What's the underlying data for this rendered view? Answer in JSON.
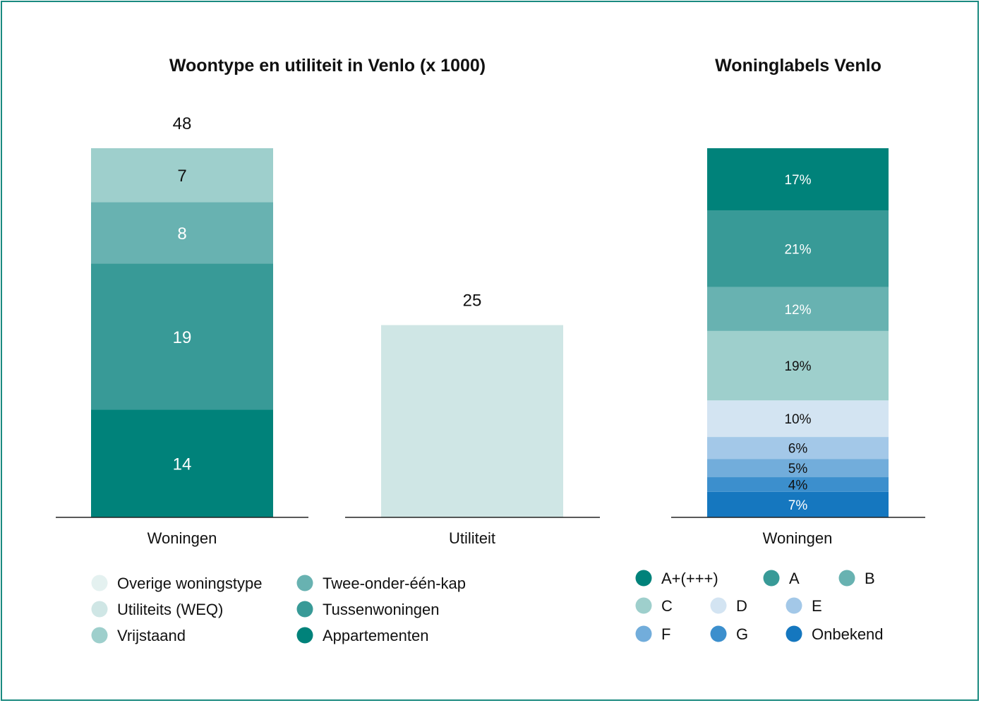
{
  "chart_data": [
    {
      "type": "bar",
      "stacked": true,
      "title": "Woontype en utiliteit in Venlo (x 1000)",
      "categories": [
        "Woningen",
        "Utiliteit"
      ],
      "totals": [
        48,
        25
      ],
      "series": [
        {
          "name": "Appartementen",
          "color": "#00827a",
          "values": [
            14,
            0
          ]
        },
        {
          "name": "Tussenwoningen",
          "color": "#389a97",
          "values": [
            19,
            0
          ]
        },
        {
          "name": "Twee-onder-één-kap",
          "color": "#68b2b1",
          "values": [
            8,
            0
          ]
        },
        {
          "name": "Vrijstaand",
          "color": "#9ecfcc",
          "values": [
            7,
            0
          ]
        },
        {
          "name": "Utiliteits (WEQ)",
          "color": "#cfe6e5",
          "values": [
            0,
            25
          ]
        },
        {
          "name": "Overige woningstype",
          "color": "#e4f1f0",
          "values": [
            0,
            0
          ]
        }
      ],
      "value_labels": {
        "woningen": [
          "14",
          "19",
          "8",
          "7"
        ],
        "totals": [
          "48",
          "25"
        ]
      },
      "legend": {
        "placement": "bottom",
        "items": [
          {
            "label": "Overige woningstype",
            "color": "#e4f1f0"
          },
          {
            "label": "Utiliteits (WEQ)",
            "color": "#cfe6e5"
          },
          {
            "label": "Vrijstaand",
            "color": "#9ecfcc"
          },
          {
            "label": "Twee-onder-één-kap",
            "color": "#68b2b1"
          },
          {
            "label": "Tussenwoningen",
            "color": "#389a97"
          },
          {
            "label": "Appartementen",
            "color": "#00827a"
          }
        ]
      },
      "grid": false
    },
    {
      "type": "bar",
      "stacked": true,
      "percent": true,
      "title": "Woninglabels Venlo",
      "categories": [
        "Woningen"
      ],
      "series": [
        {
          "name": "Onbekend",
          "color": "#1577bf",
          "value": 7,
          "label": "7%",
          "text_color": "#ffffff"
        },
        {
          "name": "G",
          "color": "#3c8fcd",
          "value": 4,
          "label": "4%",
          "text_color": "#111111"
        },
        {
          "name": "F",
          "color": "#72addb",
          "value": 5,
          "label": "5%",
          "text_color": "#111111"
        },
        {
          "name": "E",
          "color": "#a3c8e8",
          "value": 6,
          "label": "6%",
          "text_color": "#111111"
        },
        {
          "name": "D",
          "color": "#d3e4f2",
          "value": 10,
          "label": "10%",
          "text_color": "#111111"
        },
        {
          "name": "C",
          "color": "#9ecfcc",
          "value": 19,
          "label": "19%",
          "text_color": "#111111"
        },
        {
          "name": "B",
          "color": "#68b2b1",
          "value": 12,
          "label": "12%",
          "text_color": "#ffffff"
        },
        {
          "name": "A",
          "color": "#389a97",
          "value": 21,
          "label": "21%",
          "text_color": "#ffffff"
        },
        {
          "name": "A+(+++)",
          "color": "#00827a",
          "value": 17,
          "label": "17%",
          "text_color": "#ffffff"
        }
      ],
      "legend": {
        "placement": "bottom",
        "items": [
          {
            "label": "A+(+++)",
            "color": "#00827a"
          },
          {
            "label": "A",
            "color": "#389a97"
          },
          {
            "label": "B",
            "color": "#68b2b1"
          },
          {
            "label": "C",
            "color": "#9ecfcc"
          },
          {
            "label": "D",
            "color": "#d3e4f2"
          },
          {
            "label": "E",
            "color": "#a3c8e8"
          },
          {
            "label": "F",
            "color": "#72addb"
          },
          {
            "label": "G",
            "color": "#3c8fcd"
          },
          {
            "label": "Onbekend",
            "color": "#1577bf"
          }
        ]
      },
      "grid": false
    }
  ],
  "colors": {
    "frame": "#1a8a80",
    "axis": "#222222",
    "text": "#111111"
  }
}
